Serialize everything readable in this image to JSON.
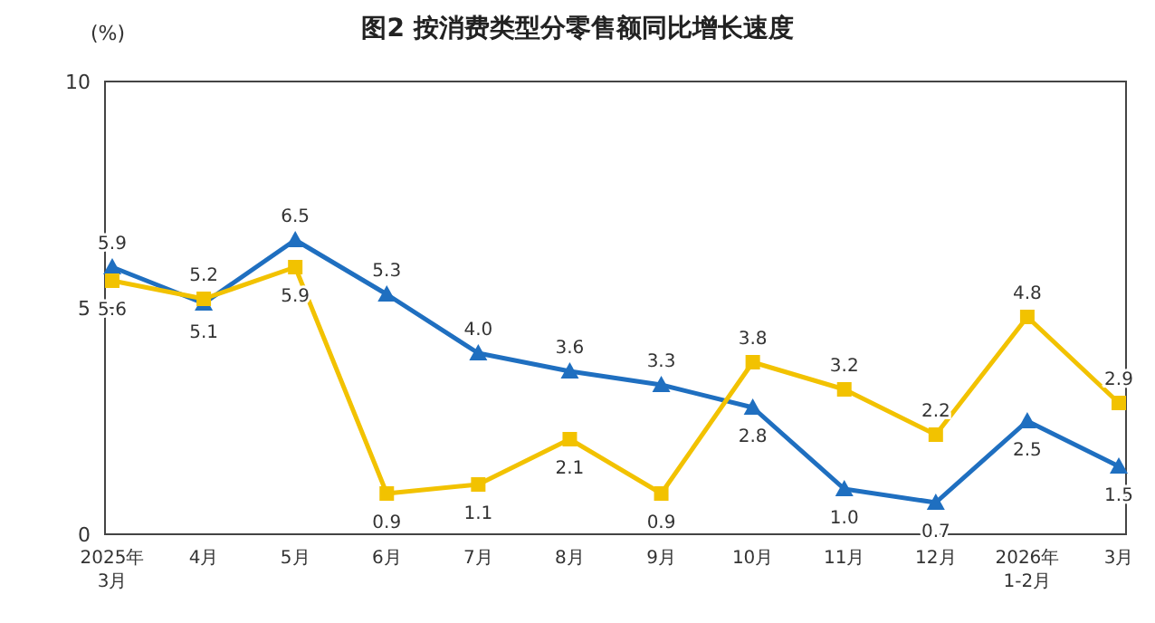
{
  "chart_data": {
    "type": "line",
    "title": "图2  按消费类型分零售额同比增长速度",
    "ylabel": "(%)",
    "categories": [
      "2025年\n3月",
      "4月",
      "5月",
      "6月",
      "7月",
      "8月",
      "9月",
      "10月",
      "11月",
      "12月",
      "2026年\n1-2月",
      "3月"
    ],
    "series": [
      {
        "color": "#1f6fc0",
        "marker": "triangle",
        "values": [
          5.9,
          5.1,
          6.5,
          5.3,
          4.0,
          3.6,
          3.3,
          2.8,
          1.0,
          0.7,
          2.5,
          1.5
        ],
        "value_labels": [
          "5.9",
          "5.1",
          "6.5",
          "5.3",
          "4.0",
          "3.6",
          "3.3",
          "2.8",
          "1.0",
          "0.7",
          "2.5",
          "1.5"
        ]
      },
      {
        "color": "#f2c200",
        "marker": "square",
        "values": [
          5.6,
          5.2,
          5.9,
          0.9,
          1.1,
          2.1,
          0.9,
          3.8,
          3.2,
          2.2,
          4.8,
          2.9
        ],
        "value_labels": [
          "5.6",
          "5.2",
          "5.9",
          "0.9",
          "1.1",
          "2.1",
          "0.9",
          "3.8",
          "3.2",
          "2.2",
          "4.8",
          "2.9"
        ]
      }
    ],
    "ylim": [
      0,
      10
    ],
    "yticks": [
      0,
      5,
      10
    ],
    "grid": false
  }
}
